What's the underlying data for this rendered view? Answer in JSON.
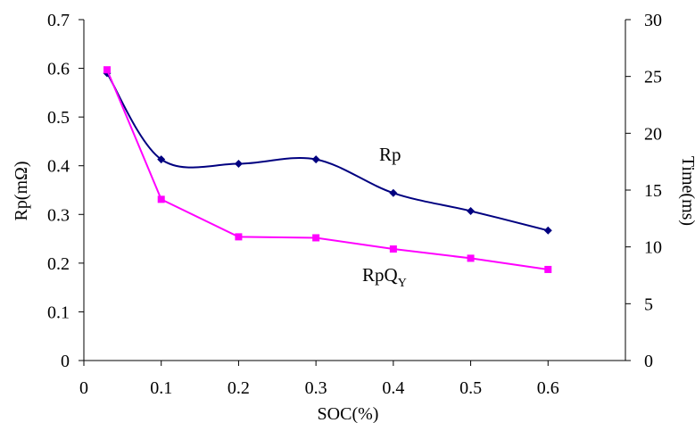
{
  "chart_data": {
    "type": "line",
    "title": "",
    "xlabel": "SOC(%)",
    "ylabel_left": "Rp(mΩ)",
    "ylabel_right": "Time(ms)",
    "xlim": [
      0,
      0.7
    ],
    "ylim_left": [
      0,
      0.7
    ],
    "ylim_right": [
      0,
      30
    ],
    "x_ticks": [
      "0",
      "0.1",
      "0.2",
      "0.3",
      "0.4",
      "0.5",
      "0.6"
    ],
    "y_left_ticks": [
      "0",
      "0.1",
      "0.2",
      "0.3",
      "0.4",
      "0.5",
      "0.6",
      "0.7"
    ],
    "y_right_ticks": [
      "0",
      "5",
      "10",
      "15",
      "20",
      "25",
      "30"
    ],
    "grid": false,
    "legend": "none",
    "series": [
      {
        "name": "Rp",
        "axis": "left",
        "smooth": true,
        "marker": "diamond",
        "color": "#000080",
        "x": [
          0.03,
          0.1,
          0.2,
          0.3,
          0.4,
          0.5,
          0.6
        ],
        "y": [
          0.59,
          0.413,
          0.404,
          0.413,
          0.344,
          0.307,
          0.267
        ]
      },
      {
        "name": "RpQ",
        "name_subscript": "Y",
        "axis": "left",
        "smooth": false,
        "marker": "square",
        "color": "#ff00ff",
        "x": [
          0.03,
          0.1,
          0.2,
          0.3,
          0.4,
          0.5,
          0.6
        ],
        "y": [
          0.597,
          0.331,
          0.254,
          0.252,
          0.229,
          0.21,
          0.187
        ]
      }
    ]
  }
}
